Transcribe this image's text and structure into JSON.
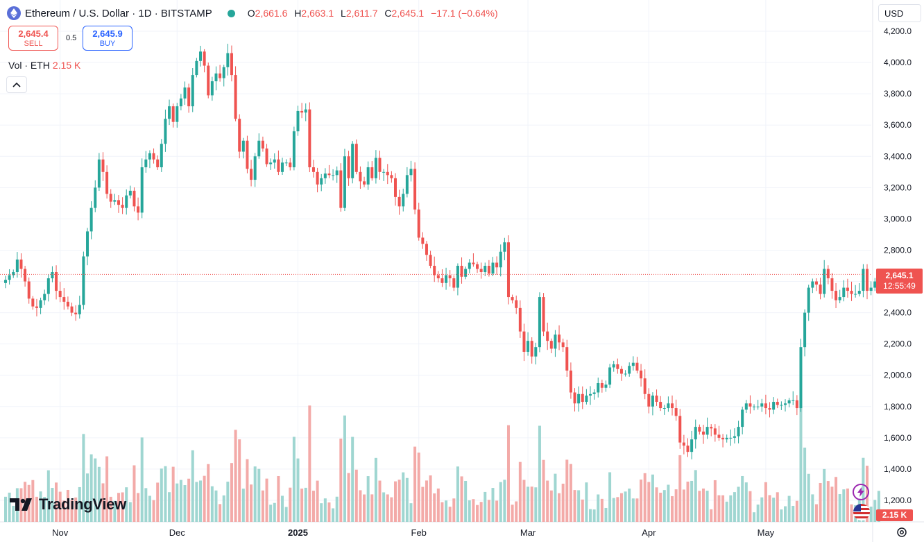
{
  "header": {
    "symbol": "Ethereum / U.S. Dollar · 1D · BITSTAMP",
    "open_label": "O",
    "open": "2,661.6",
    "high_label": "H",
    "high": "2,663.1",
    "low_label": "L",
    "low": "2,611.7",
    "close_label": "C",
    "close": "2,645.1",
    "change": "−17.1 (−0.64%)"
  },
  "trade": {
    "sell_price": "2,645.4",
    "sell_label": "SELL",
    "spread": "0.5",
    "buy_price": "2,645.9",
    "buy_label": "BUY"
  },
  "volume_legend": {
    "label": "Vol · ETH",
    "value": "2.15 K"
  },
  "currency": "USD",
  "logo_text": "TradingView",
  "current_price": {
    "price": "2,645.1",
    "countdown": "12:55:49"
  },
  "current_volume": "2.15 K",
  "colors": {
    "up": "#26a69a",
    "down": "#ef5350",
    "up_volume": "#9fd6d1",
    "down_volume": "#f3aaa8",
    "grid": "#f0f3fa"
  },
  "icons": {
    "collapse": "chevron-up-icon",
    "bolt": "lightning-icon",
    "flag": "us-flag-icon",
    "settings": "gear-icon"
  },
  "chart_data": {
    "type": "candlestick",
    "y_ticks": [
      "4,200.0",
      "4,000.0",
      "3,800.0",
      "3,600.0",
      "3,400.0",
      "3,200.0",
      "3,000.0",
      "2,800.0",
      "2,600.0",
      "2,400.0",
      "2,200.0",
      "2,000.0",
      "1,800.0",
      "1,600.0",
      "1,400.0",
      "1,200.0"
    ],
    "y_tick_values": [
      4200,
      4000,
      3800,
      3600,
      3400,
      3200,
      3000,
      2800,
      2600,
      2400,
      2200,
      2000,
      1800,
      1600,
      1400,
      1200
    ],
    "ylim": [
      1080,
      4280
    ],
    "x_ticks": [
      {
        "label": "Nov",
        "index": 14
      },
      {
        "label": "Dec",
        "index": 44
      },
      {
        "label": "2025",
        "index": 75
      },
      {
        "label": "Feb",
        "index": 106
      },
      {
        "label": "Mar",
        "index": 134
      },
      {
        "label": "Apr",
        "index": 165
      },
      {
        "label": "May",
        "index": 195
      }
    ],
    "closes": [
      2610,
      2640,
      2660,
      2740,
      2680,
      2600,
      2490,
      2440,
      2430,
      2480,
      2520,
      2620,
      2660,
      2540,
      2500,
      2470,
      2440,
      2400,
      2390,
      2450,
      2760,
      2920,
      3070,
      3200,
      3380,
      3300,
      3160,
      3110,
      3120,
      3090,
      3070,
      3150,
      3180,
      3080,
      3040,
      3330,
      3380,
      3420,
      3380,
      3330,
      3480,
      3640,
      3720,
      3620,
      3720,
      3770,
      3840,
      3720,
      3920,
      4010,
      4070,
      3980,
      3790,
      3880,
      3930,
      3900,
      3970,
      4060,
      3920,
      3640,
      3430,
      3500,
      3320,
      3250,
      3400,
      3500,
      3450,
      3350,
      3360,
      3380,
      3300,
      3360,
      3360,
      3330,
      3560,
      3690,
      3680,
      3700,
      3330,
      3300,
      3220,
      3260,
      3290,
      3280,
      3280,
      3310,
      3070,
      3400,
      3260,
      3480,
      3300,
      3240,
      3220,
      3330,
      3260,
      3390,
      3300,
      3300,
      3280,
      3260,
      3140,
      3080,
      3160,
      3280,
      3320,
      3060,
      2880,
      2840,
      2770,
      2700,
      2640,
      2620,
      2590,
      2640,
      2620,
      2560,
      2700,
      2630,
      2680,
      2720,
      2710,
      2680,
      2660,
      2700,
      2650,
      2720,
      2690,
      2790,
      2850,
      2500,
      2480,
      2430,
      2280,
      2150,
      2220,
      2120,
      2180,
      2500,
      2280,
      2220,
      2170,
      2260,
      2210,
      2180,
      2030,
      1890,
      1820,
      1880,
      1830,
      1870,
      1880,
      1890,
      1950,
      1920,
      1940,
      2050,
      2070,
      2040,
      2010,
      2010,
      2060,
      2080,
      2030,
      1980,
      1880,
      1800,
      1870,
      1830,
      1790,
      1790,
      1820,
      1790,
      1740,
      1570,
      1550,
      1510,
      1590,
      1670,
      1640,
      1620,
      1670,
      1660,
      1620,
      1600,
      1590,
      1600,
      1600,
      1610,
      1670,
      1780,
      1820,
      1800,
      1800,
      1800,
      1820,
      1790,
      1780,
      1830,
      1810,
      1810,
      1820,
      1840,
      1840,
      1790,
      2180,
      2400,
      2560,
      2600,
      2580,
      2520,
      2680,
      2620,
      2540,
      2480,
      2500,
      2560,
      2540,
      2520,
      2520,
      2540,
      2680,
      2540,
      2560,
      2600,
      2645
    ]
  }
}
